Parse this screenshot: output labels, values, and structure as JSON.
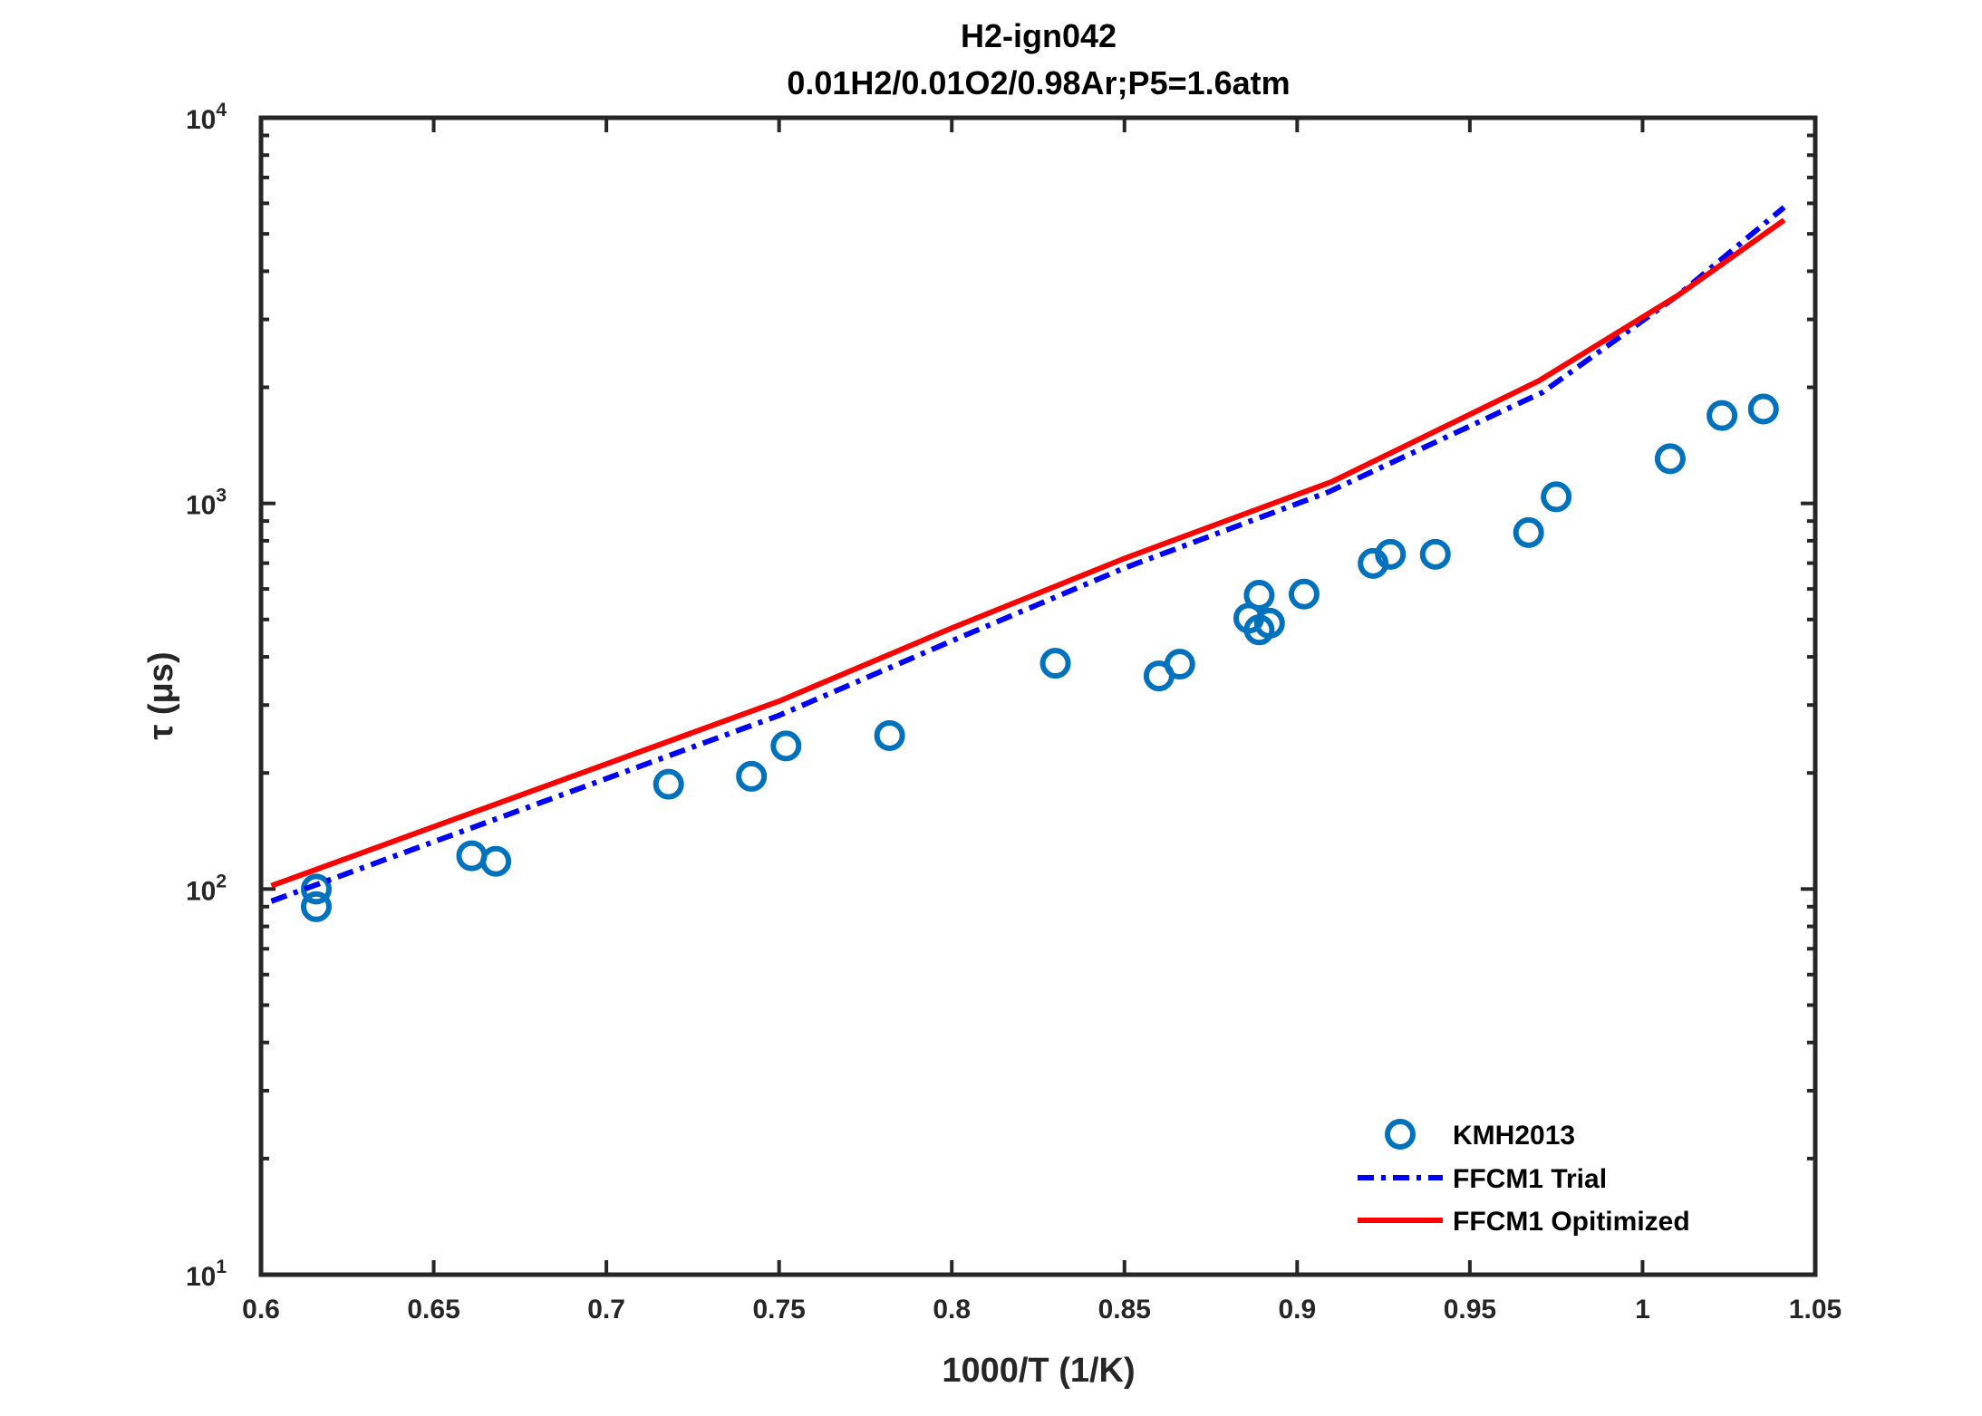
{
  "chart_data": {
    "type": "line",
    "title": [
      "H2-ign042",
      "0.01H2/0.01O2/0.98Ar;P5=1.6atm"
    ],
    "xlabel": "1000/T (1/K)",
    "ylabel": "τ (μs)",
    "xlim": [
      0.6,
      1.05
    ],
    "ylim": [
      10,
      10000
    ],
    "yscale": "log",
    "xticks": [
      "0.6",
      "0.65",
      "0.7",
      "0.75",
      "0.8",
      "0.85",
      "0.9",
      "0.95",
      "1",
      "1.05"
    ],
    "yticks": [
      {
        "base": "10",
        "exp": "1"
      },
      {
        "base": "10",
        "exp": "2"
      },
      {
        "base": "10",
        "exp": "3"
      },
      {
        "base": "10",
        "exp": "4"
      }
    ],
    "legend_position": "bottom-right",
    "series": [
      {
        "name": "KMH2013",
        "style": "markers-circle",
        "color": "#0072BD",
        "x": [
          0.616,
          0.616,
          0.661,
          0.668,
          0.718,
          0.742,
          0.752,
          0.782,
          0.83,
          0.86,
          0.866,
          0.886,
          0.889,
          0.889,
          0.892,
          0.902,
          0.922,
          0.927,
          0.94,
          0.967,
          0.975,
          1.008,
          1.023,
          1.035
        ],
        "y": [
          100,
          90,
          122,
          118,
          187,
          196,
          235,
          250,
          385,
          357,
          383,
          504,
          578,
          470,
          489,
          582,
          699,
          738,
          738,
          840,
          1040,
          1306,
          1690,
          1757
        ]
      },
      {
        "name": "FFCM1 Trial",
        "style": "dashdot",
        "color": "#0000FF",
        "x": [
          0.603,
          0.75,
          0.8,
          0.85,
          0.909,
          0.971,
          1.01,
          1.041
        ],
        "y": [
          93,
          282,
          440,
          680,
          1070,
          1940,
          3450,
          5860
        ]
      },
      {
        "name": "FFCM1 Opitimized",
        "style": "solid",
        "color": "#FF0000",
        "x": [
          0.603,
          0.75,
          0.8,
          0.85,
          0.91,
          0.97,
          1.01,
          1.041
        ],
        "y": [
          102,
          307,
          475,
          720,
          1138,
          2080,
          3450,
          5430
        ]
      }
    ]
  }
}
